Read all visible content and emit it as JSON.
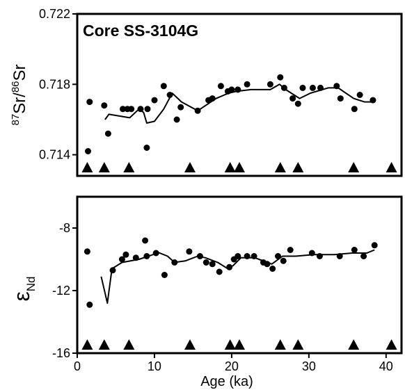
{
  "chart_data": [
    {
      "type": "scatter",
      "title": "Core SS-3104G",
      "xlabel": "",
      "ylabel": "87Sr/86Sr",
      "ylabel_parts": {
        "sup1": "87",
        "base1": "Sr/",
        "sup2": "86",
        "base2": "Sr"
      },
      "xlim": [
        0,
        42
      ],
      "ylim": [
        0.7128,
        0.722
      ],
      "yticks": [
        0.714,
        0.718,
        0.722
      ],
      "ytick_labels": [
        "0.714",
        "0.718",
        "0.722"
      ],
      "series": [
        {
          "kind": "points",
          "x": [
            1.4,
            1.6,
            3.5,
            4.0,
            5.9,
            6.5,
            7.0,
            8.2,
            9.0,
            9.1,
            10.0,
            11.2,
            12.0,
            12.9,
            13.4,
            15.6,
            17.0,
            17.5,
            18.6,
            19.5,
            20.0,
            20.8,
            22.0,
            25.0,
            26.3,
            26.8,
            27.9,
            28.6,
            29.2,
            30.5,
            31.5,
            33.6,
            34.1,
            35.9,
            36.6,
            38.3
          ],
          "y": [
            0.7142,
            0.717,
            0.7168,
            0.7152,
            0.7166,
            0.7166,
            0.7166,
            0.7166,
            0.7144,
            0.7166,
            0.7171,
            0.7179,
            0.7174,
            0.716,
            0.7167,
            0.7165,
            0.7171,
            0.7172,
            0.7179,
            0.7176,
            0.7177,
            0.7177,
            0.718,
            0.718,
            0.7184,
            0.7178,
            0.7172,
            0.7169,
            0.7178,
            0.7178,
            0.7178,
            0.7179,
            0.7172,
            0.7166,
            0.7174,
            0.7171
          ]
        },
        {
          "kind": "line",
          "x": [
            3.6,
            4.1,
            6.8,
            8.0,
            8.6,
            9.0,
            10.0,
            11.2,
            12.3,
            13.5,
            15.6,
            18.0,
            19.6,
            20.6,
            22.5,
            25.0,
            26.2,
            27.0,
            28.8,
            30.2,
            32.5,
            33.8,
            35.8,
            37.2,
            38.5
          ],
          "y": [
            0.716,
            0.7163,
            0.7161,
            0.7166,
            0.7164,
            0.7158,
            0.7159,
            0.7166,
            0.7175,
            0.717,
            0.7165,
            0.7172,
            0.7175,
            0.7176,
            0.7177,
            0.7177,
            0.718,
            0.7177,
            0.7172,
            0.7175,
            0.7178,
            0.7178,
            0.7172,
            0.717,
            0.717
          ]
        }
      ],
      "markers": {
        "shape": "triangle-up",
        "x": [
          1.3,
          3.5,
          6.7,
          14.6,
          19.8,
          21.0,
          26.3,
          28.6,
          35.8,
          40.7
        ]
      }
    },
    {
      "type": "scatter",
      "title": "",
      "xlabel": "Age (ka)",
      "ylabel": "εNd",
      "ylabel_parts": {
        "base": "ε",
        "sub": "Nd"
      },
      "xlim": [
        0,
        42
      ],
      "ylim": [
        -16,
        -6
      ],
      "xticks": [
        0,
        10,
        20,
        30,
        40
      ],
      "xtick_labels": [
        "0",
        "10",
        "20",
        "30",
        "40"
      ],
      "yticks": [
        -8,
        -12,
        -16
      ],
      "ytick_labels": [
        "-8",
        "-12",
        "-16"
      ],
      "series": [
        {
          "kind": "points",
          "x": [
            1.3,
            1.6,
            4.6,
            5.8,
            6.3,
            7.6,
            8.8,
            9.0,
            10.2,
            11.3,
            12.6,
            14.5,
            15.9,
            16.7,
            17.5,
            18.4,
            19.7,
            20.3,
            20.8,
            22.0,
            22.9,
            24.1,
            24.6,
            25.3,
            26.0,
            26.7,
            27.6,
            30.4,
            31.4,
            34.0,
            35.9,
            37.1,
            38.5
          ],
          "y": [
            -9.5,
            -12.9,
            -10.7,
            -10.0,
            -9.7,
            -9.9,
            -8.8,
            -9.8,
            -9.6,
            -11.0,
            -10.2,
            -9.5,
            -9.8,
            -10.2,
            -10.3,
            -10.8,
            -10.5,
            -10.0,
            -9.8,
            -9.8,
            -9.8,
            -10.2,
            -10.3,
            -10.6,
            -9.8,
            -10.1,
            -9.4,
            -9.6,
            -9.8,
            -9.8,
            -9.4,
            -9.8,
            -9.1
          ]
        },
        {
          "kind": "line",
          "x": [
            3.1,
            3.9,
            4.5,
            5.8,
            8.0,
            9.8,
            10.2,
            11.7,
            12.6,
            14.0,
            15.6,
            16.6,
            18.2,
            19.5,
            20.2,
            21.2,
            23.0,
            25.2,
            26.6,
            28.3,
            30.6,
            33.3,
            35.6,
            37.5,
            38.5
          ],
          "y": [
            -11.1,
            -12.8,
            -10.6,
            -10.2,
            -10.0,
            -9.7,
            -9.5,
            -9.8,
            -10.2,
            -10.1,
            -9.8,
            -9.9,
            -10.2,
            -10.6,
            -10.4,
            -9.9,
            -9.9,
            -10.3,
            -9.8,
            -9.8,
            -9.7,
            -9.7,
            -9.6,
            -9.6,
            -9.4
          ]
        }
      ],
      "markers": {
        "shape": "triangle-up",
        "x": [
          1.3,
          3.5,
          6.7,
          14.6,
          19.8,
          21.0,
          26.3,
          28.6,
          35.8,
          40.7
        ]
      }
    }
  ]
}
